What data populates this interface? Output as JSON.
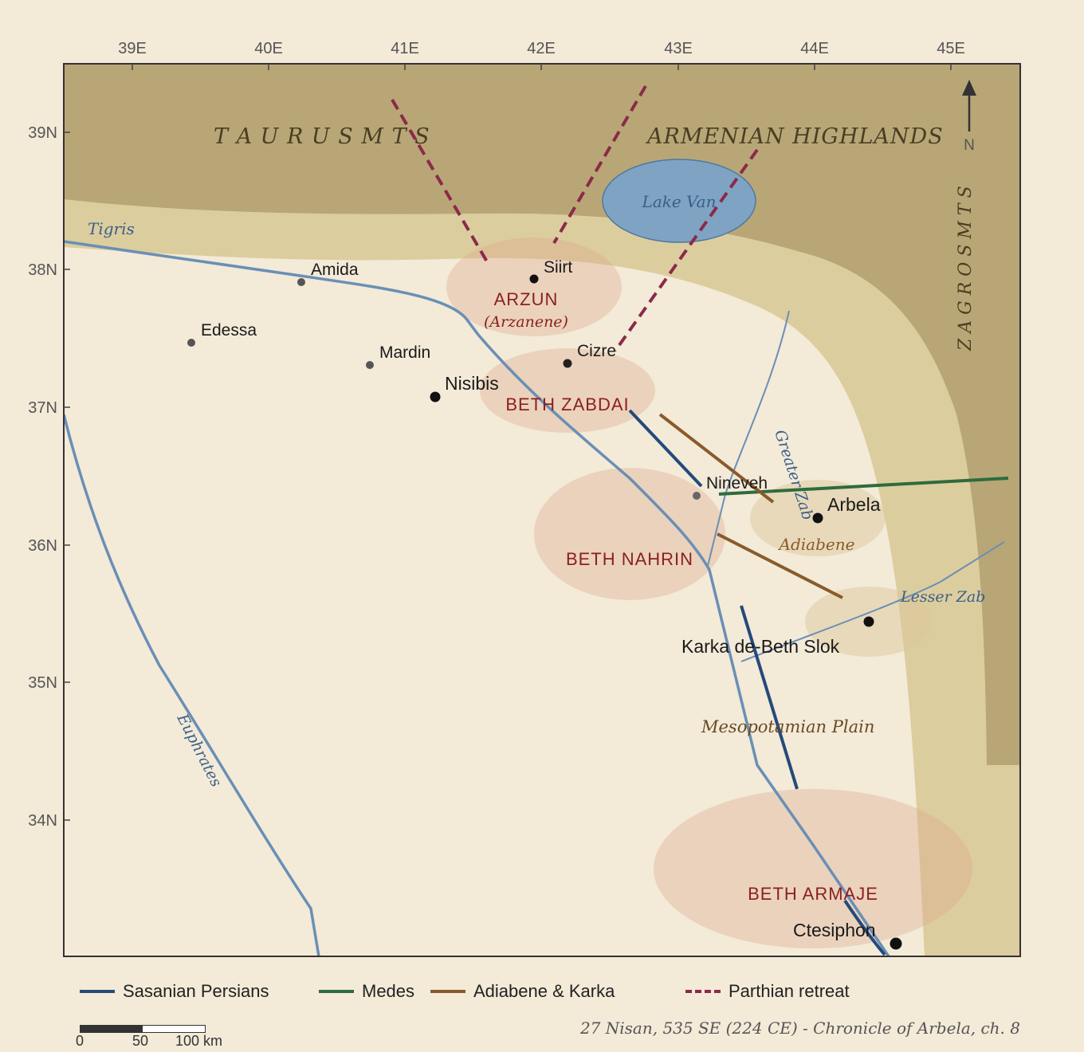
{
  "longitude_ticks": [
    "39E",
    "40E",
    "41E",
    "42E",
    "43E",
    "44E",
    "45E"
  ],
  "latitude_ticks": [
    "39N",
    "38N",
    "37N",
    "36N",
    "35N",
    "34N"
  ],
  "physical_labels": {
    "taurus": "T A U R U S  M T S",
    "armenian": "ARMENIAN HIGHLANDS",
    "zagros": "Z A G R O S  M T S",
    "lake_van": "Lake Van",
    "mesopotamian_plain": "Mesopotamian Plain",
    "north": "N"
  },
  "rivers": {
    "tigris": "Tigris",
    "euphrates": "Euphrates",
    "greater_zab": "Greater Zab",
    "lesser_zab": "Lesser Zab"
  },
  "cities": {
    "amida": "Amida",
    "edessa": "Edessa",
    "mardin": "Mardin",
    "nisibis": "Nisibis",
    "siirt": "Siirt",
    "cizre": "Cizre",
    "nineveh": "Nineveh",
    "arbela": "Arbela",
    "karka": "Karka de-Beth Slok",
    "ctesiphon": "Ctesiphon"
  },
  "regions": {
    "arzun": "ARZUN",
    "arzanene": "(Arzanene)",
    "beth_zabdai": "BETH ZABDAI",
    "beth_nahrin": "BETH NAHRIN",
    "adiabene": "Adiabene",
    "beth_armaje": "BETH ARMAJE"
  },
  "legend": [
    {
      "label": "Sasanian Persians",
      "color": "#244a7c",
      "style": "solid"
    },
    {
      "label": "Medes",
      "color": "#2f6b3c",
      "style": "solid"
    },
    {
      "label": "Adiabene & Karka",
      "color": "#8a5a2b",
      "style": "solid"
    },
    {
      "label": "Parthian retreat",
      "color": "#8b2a4a",
      "style": "dashed"
    }
  ],
  "scale_bar": {
    "labels": [
      "0",
      "50",
      "100 km"
    ]
  },
  "caption": "27 Nisan, 535 SE (224 CE) - Chronicle of Arbela, ch. 8"
}
